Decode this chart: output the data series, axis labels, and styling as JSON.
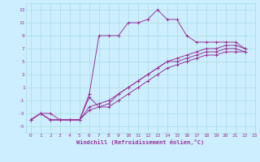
{
  "xlabel": "Windchill (Refroidissement éolien,°C)",
  "background_color": "#cceeff",
  "grid_color": "#aadddd",
  "line_color": "#993399",
  "xlim": [
    -0.5,
    23
  ],
  "ylim": [
    -6,
    14
  ],
  "xticks": [
    0,
    1,
    2,
    3,
    4,
    5,
    6,
    7,
    8,
    9,
    10,
    11,
    12,
    13,
    14,
    15,
    16,
    17,
    18,
    19,
    20,
    21,
    22,
    23
  ],
  "yticks": [
    -5,
    -3,
    -1,
    1,
    3,
    5,
    7,
    9,
    11,
    13
  ],
  "series": [
    [
      -4,
      -3,
      -3,
      -4,
      -4,
      -4,
      0,
      9,
      9,
      9,
      11,
      11,
      11.5,
      13,
      11.5,
      11.5,
      9,
      8,
      8,
      8,
      8,
      8,
      7
    ],
    [
      -4,
      -3,
      -4,
      -4,
      -4,
      -4,
      -0.5,
      -2,
      -1.5,
      0,
      1,
      2,
      3,
      4,
      5,
      5.5,
      6,
      6.5,
      7,
      7,
      7.5,
      7.5,
      7
    ],
    [
      -4,
      -3,
      -4,
      -4,
      -4,
      -4,
      -2,
      -1.5,
      -1,
      0,
      1,
      2,
      3,
      4,
      5,
      5,
      5.5,
      6,
      6.5,
      6.5,
      7,
      7,
      6.5
    ],
    [
      -4,
      -3,
      -4,
      -4,
      -4,
      -4,
      -2.5,
      -2,
      -2,
      -1,
      0,
      1,
      2,
      3,
      4,
      4.5,
      5,
      5.5,
      6,
      6,
      6.5,
      6.5,
      6.5
    ]
  ],
  "xlabel_fontsize": 5.0,
  "tick_fontsize": 4.5
}
